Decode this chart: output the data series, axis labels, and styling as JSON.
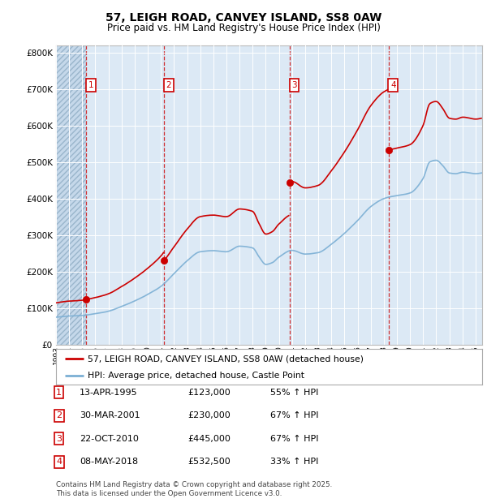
{
  "title": "57, LEIGH ROAD, CANVEY ISLAND, SS8 0AW",
  "subtitle": "Price paid vs. HM Land Registry's House Price Index (HPI)",
  "background_color": "#ffffff",
  "plot_bg_color": "#dce9f5",
  "grid_color": "#ffffff",
  "sale_color": "#cc0000",
  "hpi_color": "#7bafd4",
  "transactions": [
    {
      "num": 1,
      "date": "13-APR-1995",
      "price": 123000,
      "year": 1995.286,
      "pct": "55%",
      "dir": "↑"
    },
    {
      "num": 2,
      "date": "30-MAR-2001",
      "price": 230000,
      "year": 2001.247,
      "pct": "67%",
      "dir": "↑"
    },
    {
      "num": 3,
      "date": "22-OCT-2010",
      "price": 445000,
      "year": 2010.811,
      "pct": "67%",
      "dir": "↑"
    },
    {
      "num": 4,
      "date": "08-MAY-2018",
      "price": 532500,
      "year": 2018.354,
      "pct": "33%",
      "dir": "↑"
    }
  ],
  "ylim": [
    0,
    820000
  ],
  "yticks": [
    0,
    100000,
    200000,
    300000,
    400000,
    500000,
    600000,
    700000,
    800000
  ],
  "ytick_labels": [
    "£0",
    "£100K",
    "£200K",
    "£300K",
    "£400K",
    "£500K",
    "£600K",
    "£700K",
    "£800K"
  ],
  "xmin": 1993.0,
  "xmax": 2025.5,
  "legend_label_sale": "57, LEIGH ROAD, CANVEY ISLAND, SS8 0AW (detached house)",
  "legend_label_hpi": "HPI: Average price, detached house, Castle Point",
  "footer": "Contains HM Land Registry data © Crown copyright and database right 2025.\nThis data is licensed under the Open Government Licence v3.0."
}
